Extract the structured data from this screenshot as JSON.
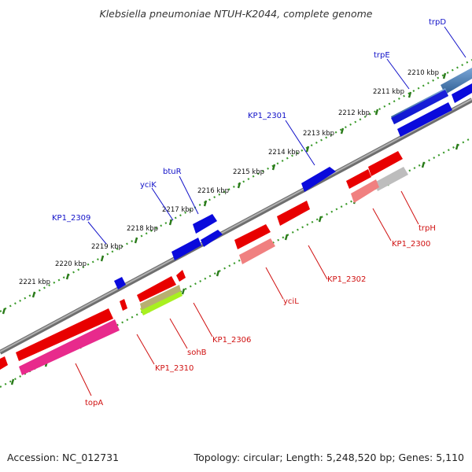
{
  "title": "Klebsiella pneumoniae NTUH-K2044, complete genome",
  "footer": {
    "accession": "Accession: NC_012731",
    "summary": "Topology: circular; Length: 5,248,520 bp; Genes: 5,110"
  },
  "colors": {
    "backbone": "#8c8c8c",
    "ruler_dots": "#3a9a2a",
    "ruler_ticks": "#2a7a1a",
    "label_forward": "#1010c8",
    "label_reverse": "#d01010",
    "gene_blue": "#0a0adc",
    "gene_red": "#e80000",
    "gene_pink": "#e82a8c",
    "gene_salmon": "#f08080",
    "gene_grey": "#bdbdbd",
    "gene_olive": "#b8b070",
    "gene_lime": "#a8f020",
    "gene_steel": "#4a7fb5"
  },
  "ruler": {
    "units": "kbp",
    "marks": [
      {
        "kbp": 2210,
        "label": "2210 kbp"
      },
      {
        "kbp": 2211,
        "label": "2211 kbp"
      },
      {
        "kbp": 2212,
        "label": "2212 kbp"
      },
      {
        "kbp": 2213,
        "label": "2213 kbp"
      },
      {
        "kbp": 2214,
        "label": "2214 kbp"
      },
      {
        "kbp": 2215,
        "label": "2215 kbp"
      },
      {
        "kbp": 2216,
        "label": "2216 kbp"
      },
      {
        "kbp": 2217,
        "label": "2217 kbp"
      },
      {
        "kbp": 2218,
        "label": "2218 kbp"
      },
      {
        "kbp": 2219,
        "label": "2219 kbp"
      },
      {
        "kbp": 2220,
        "label": "2220 kbp"
      },
      {
        "kbp": 2221,
        "label": "2221 kbp"
      }
    ]
  },
  "forward_labels": [
    "trpD",
    "trpE",
    "KP1_2301",
    "btuR",
    "yciK",
    "KP1_2309"
  ],
  "reverse_labels": [
    "trpH",
    "KP1_2300",
    "KP1_2302",
    "yciL",
    "KP1_2306",
    "sohB",
    "KP1_2310",
    "topA"
  ]
}
